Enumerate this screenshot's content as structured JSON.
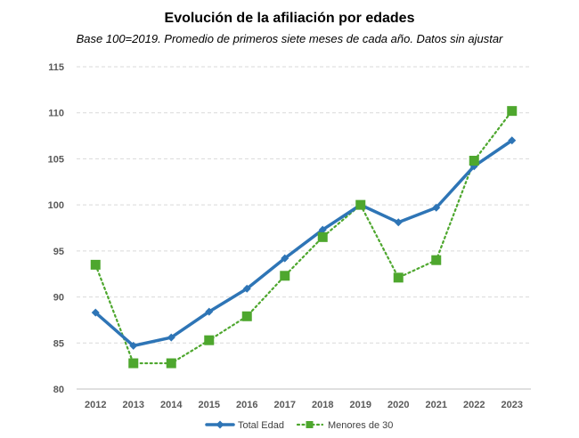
{
  "chart_data": {
    "type": "line",
    "title": "Evolución de la afiliación por edades",
    "subtitle": "Base 100=2019. Promedio de primeros siete meses de cada año. Datos sin ajustar",
    "x": [
      "2012",
      "2013",
      "2014",
      "2015",
      "2016",
      "2017",
      "2018",
      "2019",
      "2020",
      "2021",
      "2022",
      "2023"
    ],
    "yticks": [
      "80",
      "85",
      "90",
      "95",
      "100",
      "105",
      "110",
      "115"
    ],
    "ylim": [
      80,
      115
    ],
    "grid": true,
    "legend_position": "bottom",
    "series": [
      {
        "name": "Total Edad",
        "color": "#2E75B6",
        "style": "solid",
        "marker": "diamond",
        "values": [
          88.3,
          84.7,
          85.6,
          88.4,
          90.9,
          94.2,
          97.3,
          100.0,
          98.1,
          99.7,
          104.2,
          107.0
        ]
      },
      {
        "name": "Menores de 30",
        "color": "#4EA72E",
        "style": "dotted",
        "marker": "square",
        "values": [
          93.5,
          82.8,
          82.8,
          85.3,
          87.9,
          92.3,
          96.5,
          100.0,
          92.1,
          94.0,
          104.8,
          110.2
        ]
      }
    ]
  }
}
